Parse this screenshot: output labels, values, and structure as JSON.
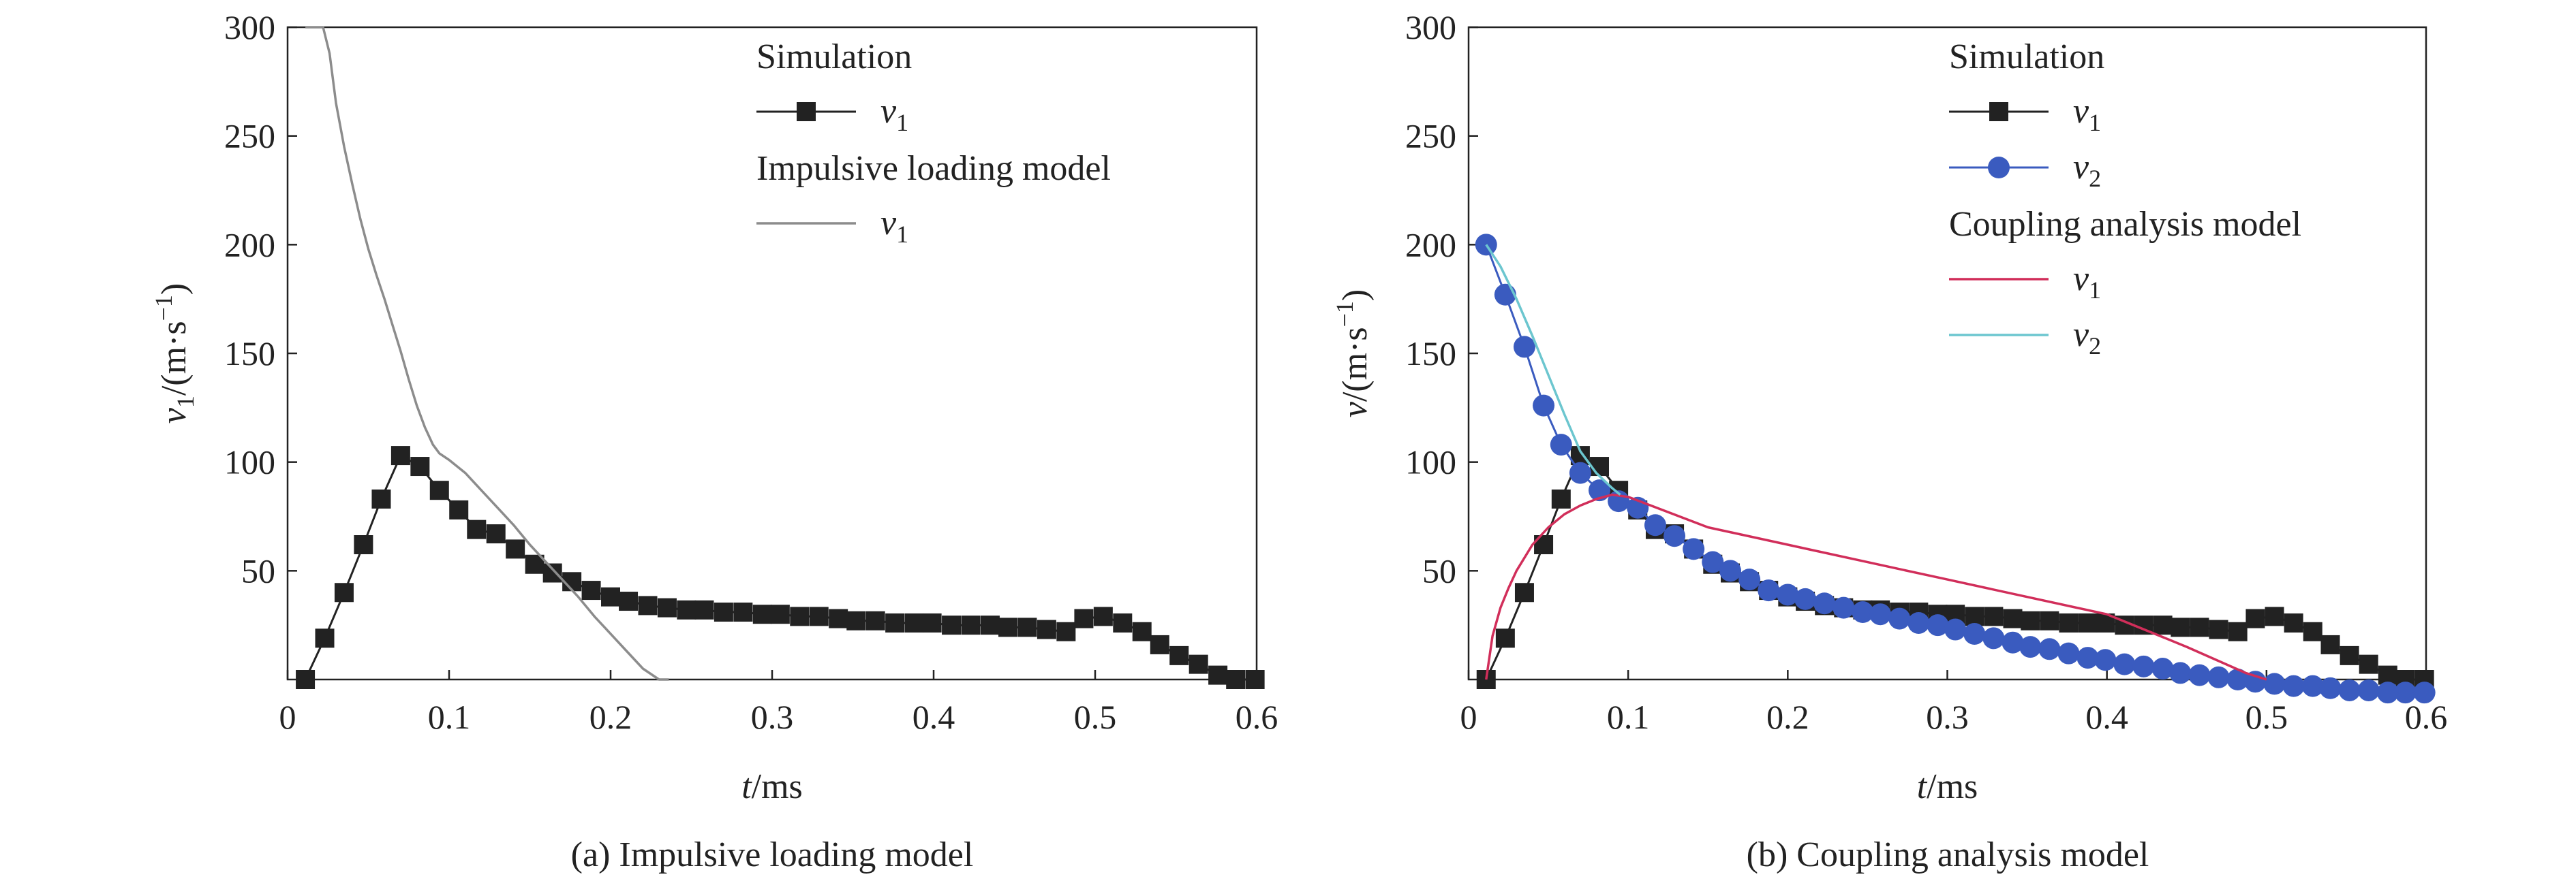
{
  "chart_data": [
    {
      "type": "line",
      "caption": "(a) Impulsive loading model",
      "xlabel": {
        "var": "t",
        "unit": "/ms"
      },
      "ylabel": {
        "var": "v",
        "sub": "1",
        "unit_pre": "/(m·s",
        "unit_sup": "−1",
        "unit_post": ")"
      },
      "xlim": [
        0,
        0.6
      ],
      "ylim": [
        0,
        300
      ],
      "xticks": [
        0,
        0.1,
        0.2,
        0.3,
        0.4,
        0.5,
        0.6
      ],
      "xtick_labels": [
        "0",
        "0.1",
        "0.2",
        "0.3",
        "0.4",
        "0.5",
        "0.6"
      ],
      "yticks": [
        50,
        100,
        150,
        200,
        250,
        300
      ],
      "ytick_labels": [
        "50",
        "100",
        "150",
        "200",
        "250",
        "300"
      ],
      "legend": {
        "position": "top-right",
        "groups": [
          {
            "title": "Simulation",
            "entries": [
              {
                "var": "v",
                "sub": "1",
                "series": 0
              }
            ]
          },
          {
            "title": "Impulsive loading model",
            "entries": [
              {
                "var": "v",
                "sub": "1",
                "series": 1
              }
            ]
          }
        ]
      },
      "series": [
        {
          "color": "#222222",
          "marker": "square",
          "line": true,
          "x": [
            0.011,
            0.023,
            0.035,
            0.047,
            0.058,
            0.07,
            0.082,
            0.094,
            0.106,
            0.117,
            0.129,
            0.141,
            0.153,
            0.164,
            0.176,
            0.188,
            0.2,
            0.211,
            0.223,
            0.235,
            0.247,
            0.258,
            0.27,
            0.282,
            0.294,
            0.305,
            0.317,
            0.329,
            0.341,
            0.352,
            0.364,
            0.376,
            0.388,
            0.399,
            0.411,
            0.423,
            0.435,
            0.446,
            0.458,
            0.47,
            0.482,
            0.493,
            0.505,
            0.517,
            0.529,
            0.54,
            0.552,
            0.564,
            0.576,
            0.587,
            0.599
          ],
          "y": [
            0,
            19,
            40,
            62,
            83,
            103,
            98,
            87,
            78,
            69,
            67,
            60,
            53,
            49,
            45,
            41,
            38,
            36,
            34,
            33,
            32,
            32,
            31,
            31,
            30,
            30,
            29,
            29,
            28,
            27,
            27,
            26,
            26,
            26,
            25,
            25,
            25,
            24,
            24,
            23,
            22,
            28,
            29,
            26,
            22,
            16,
            11,
            7,
            2,
            0,
            0
          ]
        },
        {
          "color": "#8c8c8c",
          "marker": "none",
          "line": true,
          "x": [
            0.011,
            0.022,
            0.026,
            0.03,
            0.035,
            0.04,
            0.045,
            0.05,
            0.055,
            0.06,
            0.065,
            0.07,
            0.075,
            0.08,
            0.085,
            0.09,
            0.094,
            0.1,
            0.11,
            0.12,
            0.13,
            0.14,
            0.15,
            0.16,
            0.17,
            0.18,
            0.19,
            0.2,
            0.21,
            0.22,
            0.23,
            0.236
          ],
          "y": [
            300,
            300,
            288,
            265,
            245,
            228,
            212,
            198,
            186,
            175,
            163,
            151,
            138,
            126,
            116,
            108,
            104,
            101,
            95,
            87,
            79,
            71,
            62,
            54,
            46,
            38,
            29,
            21,
            13,
            5,
            0,
            0
          ]
        }
      ]
    },
    {
      "type": "line",
      "caption": "(b) Coupling analysis model",
      "xlabel": {
        "var": "t",
        "unit": "/ms"
      },
      "ylabel": {
        "var": "v",
        "sub": "",
        "unit_pre": "/(m·s",
        "unit_sup": "−1",
        "unit_post": ")"
      },
      "xlim": [
        0,
        0.6
      ],
      "ylim": [
        0,
        300
      ],
      "xticks": [
        0,
        0.1,
        0.2,
        0.3,
        0.4,
        0.5,
        0.6
      ],
      "xtick_labels": [
        "0",
        "0.1",
        "0.2",
        "0.3",
        "0.4",
        "0.5",
        "0.6"
      ],
      "yticks": [
        50,
        100,
        150,
        200,
        250,
        300
      ],
      "ytick_labels": [
        "50",
        "100",
        "150",
        "200",
        "250",
        "300"
      ],
      "legend": {
        "position": "top-right",
        "groups": [
          {
            "title": "Simulation",
            "entries": [
              {
                "var": "v",
                "sub": "1",
                "series": 0
              },
              {
                "var": "v",
                "sub": "2",
                "series": 1
              }
            ]
          },
          {
            "title": "Coupling analysis model",
            "entries": [
              {
                "var": "v",
                "sub": "1",
                "series": 2
              },
              {
                "var": "v",
                "sub": "2",
                "series": 3
              }
            ]
          }
        ]
      },
      "series": [
        {
          "color": "#222222",
          "marker": "square",
          "line": true,
          "x": [
            0.011,
            0.023,
            0.035,
            0.047,
            0.058,
            0.07,
            0.082,
            0.094,
            0.106,
            0.117,
            0.129,
            0.141,
            0.153,
            0.164,
            0.176,
            0.188,
            0.2,
            0.211,
            0.223,
            0.235,
            0.247,
            0.258,
            0.27,
            0.282,
            0.294,
            0.305,
            0.317,
            0.329,
            0.341,
            0.352,
            0.364,
            0.376,
            0.388,
            0.399,
            0.411,
            0.423,
            0.435,
            0.446,
            0.458,
            0.47,
            0.482,
            0.493,
            0.505,
            0.517,
            0.529,
            0.54,
            0.552,
            0.564,
            0.576,
            0.587,
            0.599
          ],
          "y": [
            0,
            19,
            40,
            62,
            83,
            103,
            98,
            87,
            78,
            69,
            67,
            60,
            53,
            49,
            45,
            41,
            38,
            36,
            34,
            33,
            32,
            32,
            31,
            31,
            30,
            30,
            29,
            29,
            28,
            27,
            27,
            26,
            26,
            26,
            25,
            25,
            25,
            24,
            24,
            23,
            22,
            28,
            29,
            26,
            22,
            16,
            11,
            7,
            2,
            0,
            0
          ]
        },
        {
          "color": "#3a5bbf",
          "marker": "circle",
          "line": true,
          "x": [
            0.011,
            0.023,
            0.035,
            0.047,
            0.058,
            0.07,
            0.082,
            0.094,
            0.106,
            0.117,
            0.129,
            0.141,
            0.153,
            0.164,
            0.176,
            0.188,
            0.2,
            0.211,
            0.223,
            0.235,
            0.247,
            0.258,
            0.27,
            0.282,
            0.294,
            0.305,
            0.317,
            0.329,
            0.341,
            0.352,
            0.364,
            0.376,
            0.388,
            0.399,
            0.411,
            0.423,
            0.435,
            0.446,
            0.458,
            0.47,
            0.482,
            0.493,
            0.505,
            0.517,
            0.529,
            0.54,
            0.552,
            0.564,
            0.576,
            0.587,
            0.599
          ],
          "y": [
            200,
            177,
            153,
            126,
            108,
            95,
            87,
            82,
            79,
            71,
            66,
            60,
            54,
            50,
            46,
            41,
            39,
            37,
            35,
            33,
            31,
            30,
            28,
            26,
            25,
            23,
            21,
            19,
            17,
            15,
            14,
            12,
            10,
            9,
            7,
            6,
            5,
            3,
            2,
            1,
            0,
            -1,
            -2,
            -3,
            -3,
            -4,
            -5,
            -5,
            -6,
            -6,
            -6
          ]
        },
        {
          "color": "#d12e5a",
          "marker": "none",
          "line": true,
          "x": [
            0.011,
            0.015,
            0.02,
            0.025,
            0.03,
            0.04,
            0.05,
            0.06,
            0.07,
            0.08,
            0.09,
            0.1,
            0.15,
            0.2,
            0.25,
            0.3,
            0.35,
            0.4,
            0.45,
            0.487,
            0.5
          ],
          "y": [
            0,
            20,
            33,
            42,
            50,
            62,
            70,
            76,
            80,
            83,
            85,
            84,
            70,
            62,
            54,
            46,
            38,
            30,
            15,
            3,
            0
          ]
        },
        {
          "color": "#6cc6cf",
          "marker": "none",
          "line": true,
          "x": [
            0.011,
            0.02,
            0.03,
            0.04,
            0.05,
            0.06,
            0.07,
            0.08,
            0.09,
            0.095
          ],
          "y": [
            200,
            190,
            175,
            158,
            140,
            122,
            105,
            95,
            88,
            85
          ]
        }
      ]
    }
  ]
}
